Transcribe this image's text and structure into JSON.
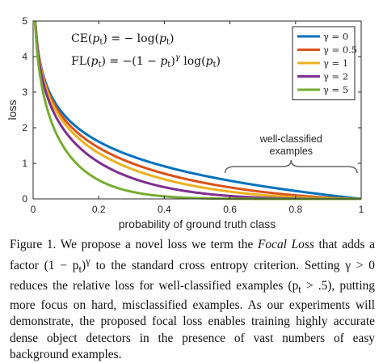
{
  "chart_data": {
    "type": "line",
    "xlabel": "probability of ground truth class",
    "ylabel": "loss",
    "xlim": [
      0,
      1
    ],
    "ylim": [
      0,
      5
    ],
    "xticks": [
      "0",
      "0.2",
      "0.4",
      "0.6",
      "0.8",
      "1"
    ],
    "yticks": [
      "0",
      "1",
      "2",
      "3",
      "4",
      "5"
    ],
    "legend_position": "top-right",
    "grid": false,
    "equations": [
      "CE(p_t) = − log(p_t)",
      "FL(p_t) = −(1 − p_t)^γ log(p_t)"
    ],
    "annotation": {
      "lines": [
        "well-classified",
        "examples"
      ],
      "x_range": [
        0.6,
        1
      ]
    },
    "series": [
      {
        "name": "γ = 0",
        "gamma": 0,
        "color": "#0072BD"
      },
      {
        "name": "γ = 0.5",
        "gamma": 0.5,
        "color": "#D95319"
      },
      {
        "name": "γ = 1",
        "gamma": 1,
        "color": "#EDB120"
      },
      {
        "name": "γ = 2",
        "gamma": 2,
        "color": "#7E2F8E"
      },
      {
        "name": "γ = 5",
        "gamma": 5,
        "color": "#77AC30"
      }
    ]
  },
  "caption": {
    "label": "Figure 1.",
    "t1": " We propose a novel loss we term the ",
    "emph": "Focal Loss",
    "t2": " that adds a factor (1 − p",
    "sub1": "t",
    "t3": ")",
    "sup1": "γ",
    "t4": " to the standard cross entropy criterion. Setting γ > 0 reduces the relative loss for well-classified examples (p",
    "sub2": "t",
    "t5": " > .5), putting more focus on hard, misclassified examples. As our experiments will demonstrate, the proposed focal loss enables training highly accurate dense object detectors in the presence of vast numbers of easy background examples."
  }
}
